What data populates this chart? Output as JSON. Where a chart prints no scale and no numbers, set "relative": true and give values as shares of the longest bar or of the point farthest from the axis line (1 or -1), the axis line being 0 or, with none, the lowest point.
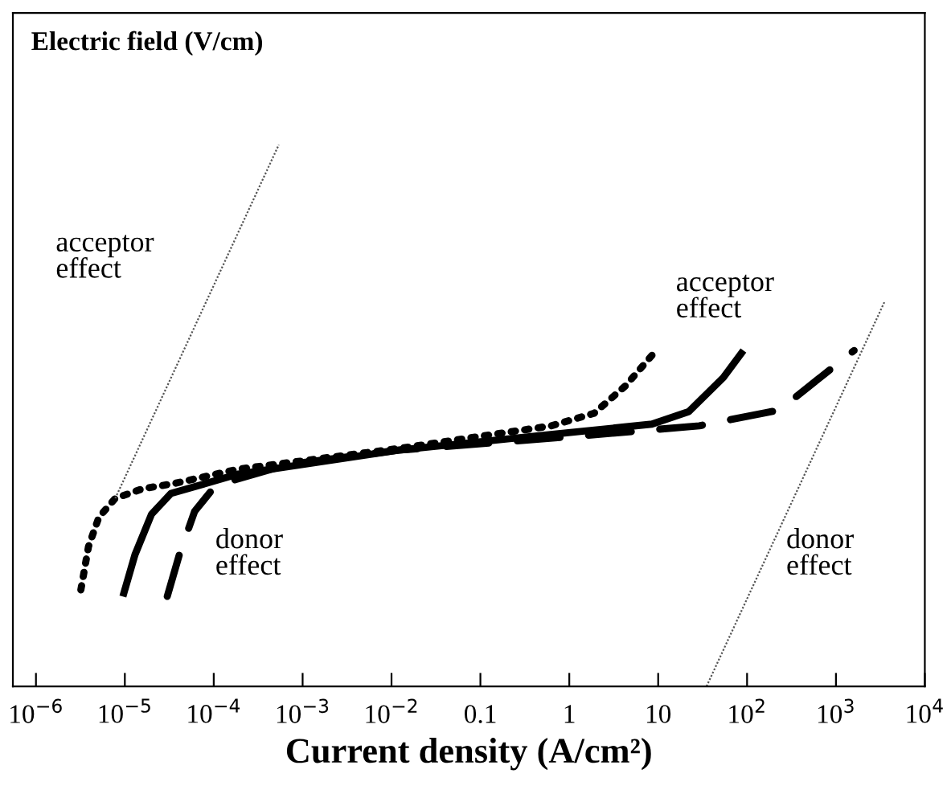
{
  "chart_data": {
    "type": "line",
    "relative": true,
    "xlabel": "Current density (A/cm²)",
    "ylabel": "Electric field (V/cm)",
    "log": "x",
    "grid": false,
    "legend": false,
    "xlim": [
      5.5e-07,
      10000
    ],
    "xticks": [
      {
        "value": 1e-06,
        "label": "10$^{−6}$"
      },
      {
        "value": 1e-05,
        "label": "10$^{−5}$"
      },
      {
        "value": 0.0001,
        "label": "10$^{−4}$"
      },
      {
        "value": 0.001,
        "label": "10$^{−3}$"
      },
      {
        "value": 0.01,
        "label": "10$^{−2}$"
      },
      0.1,
      1,
      10,
      {
        "value": 100,
        "label": "10$^{2}$"
      },
      {
        "value": 1000,
        "label": "10$^{3}$"
      },
      {
        "value": 10000,
        "label": "10$^{4}$"
      }
    ],
    "series": [
      {
        "color": "#000000",
        "line_style": "dotted",
        "x": [
          3.2e-06,
          3.9e-06,
          5.1e-06,
          7.8e-06,
          1.6e-05,
          3.5e-05,
          0.00019,
          0.012,
          0.63,
          1.9,
          4.3,
          9.5
        ],
        "values": [
          0.178,
          0.258,
          0.312,
          0.347,
          0.365,
          0.374,
          0.401,
          0.439,
          0.481,
          0.504,
          0.555,
          0.62
        ]
      },
      {
        "color": "#000000",
        "line_style": "solid",
        "x": [
          9.5e-06,
          1.3e-05,
          2e-05,
          3.3e-05,
          0.00019,
          0.012,
          0.72,
          8.5,
          22,
          54,
          91
        ],
        "values": [
          0.166,
          0.243,
          0.318,
          0.356,
          0.392,
          0.436,
          0.466,
          0.484,
          0.507,
          0.57,
          0.62
        ]
      },
      {
        "color": "#000000",
        "line_style": "dashed",
        "x": [
          3e-05,
          4.1e-05,
          6.1e-05,
          0.000105,
          0.00066,
          0.012,
          2.5,
          29,
          230,
          1600
        ],
        "values": [
          0.166,
          0.243,
          0.323,
          0.371,
          0.409,
          0.436,
          0.466,
          0.481,
          0.51,
          0.62
        ]
      },
      {
        "type": "line",
        "color": "#555555",
        "line_style": "dotted",
        "x": [
          7.8e-06,
          0.00054
        ],
        "values": [
          0.347,
          1
        ]
      },
      {
        "type": "line",
        "color": "#555555",
        "line_style": "dotted",
        "x": [
          35,
          3500
        ],
        "values": [
          0,
          0.709
        ]
      }
    ],
    "annotations": [
      "acceptor\neffect",
      "donor\neffect",
      "acceptor\neffect",
      "donor\neffect"
    ]
  }
}
